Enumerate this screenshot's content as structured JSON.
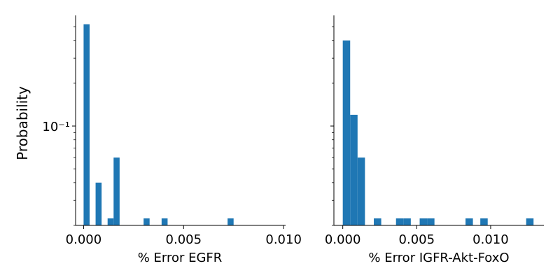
{
  "figure": {
    "shared_ylabel": "Probability"
  },
  "chart_data": [
    {
      "type": "bar",
      "xlabel": "% Error EGFR",
      "ylabel": "Probability",
      "yscale": "log",
      "ylim": [
        0.02,
        0.6
      ],
      "xlim": [
        -0.0004,
        0.0101
      ],
      "xticks": [
        "0.000",
        "0.005",
        "0.010"
      ],
      "yticks": [
        "10⁻¹"
      ],
      "grid": false,
      "color": "#1f77b4",
      "bin_width": 0.0003,
      "bins": [
        {
          "x": 0.0,
          "value": 0.52
        },
        {
          "x": 0.0006,
          "value": 0.04
        },
        {
          "x": 0.0012,
          "value": 0.02
        },
        {
          "x": 0.0015,
          "value": 0.06
        },
        {
          "x": 0.003,
          "value": 0.02
        },
        {
          "x": 0.0039,
          "value": 0.02
        },
        {
          "x": 0.0072,
          "value": 0.02
        }
      ]
    },
    {
      "type": "bar",
      "xlabel": "% Error IGFR-Akt-FoxO",
      "ylabel": "",
      "yscale": "log",
      "ylim": [
        0.02,
        0.6
      ],
      "xlim": [
        -0.0006,
        0.0136
      ],
      "xticks": [
        "0.000",
        "0.005",
        "0.010"
      ],
      "yticks": [],
      "grid": false,
      "color": "#1f77b4",
      "bin_width": 0.0005,
      "bins": [
        {
          "x": 0.0,
          "value": 0.4
        },
        {
          "x": 0.0005,
          "value": 0.12
        },
        {
          "x": 0.001,
          "value": 0.06
        },
        {
          "x": 0.0021,
          "value": 0.02
        },
        {
          "x": 0.0036,
          "value": 0.02
        },
        {
          "x": 0.0041,
          "value": 0.02
        },
        {
          "x": 0.0052,
          "value": 0.02
        },
        {
          "x": 0.0057,
          "value": 0.02
        },
        {
          "x": 0.0083,
          "value": 0.02
        },
        {
          "x": 0.0093,
          "value": 0.02
        },
        {
          "x": 0.0124,
          "value": 0.02
        }
      ]
    }
  ]
}
